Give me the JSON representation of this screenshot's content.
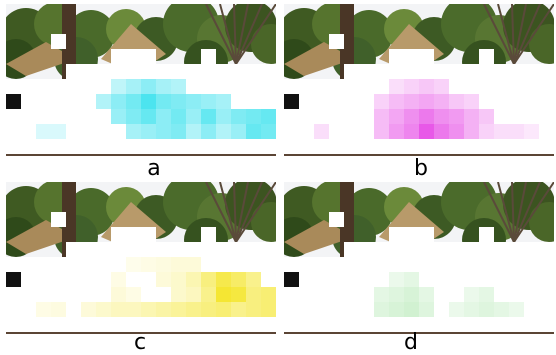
{
  "panels": [
    {
      "id": "a",
      "label": "a",
      "overlay_color": "#00d8e8"
    },
    {
      "id": "b",
      "label": "b",
      "overlay_color": "#e020e0"
    },
    {
      "id": "c",
      "label": "c",
      "overlay_color": "#f2e000"
    },
    {
      "id": "d",
      "label": "d",
      "overlay_color": "#7ad67a"
    }
  ]
}
